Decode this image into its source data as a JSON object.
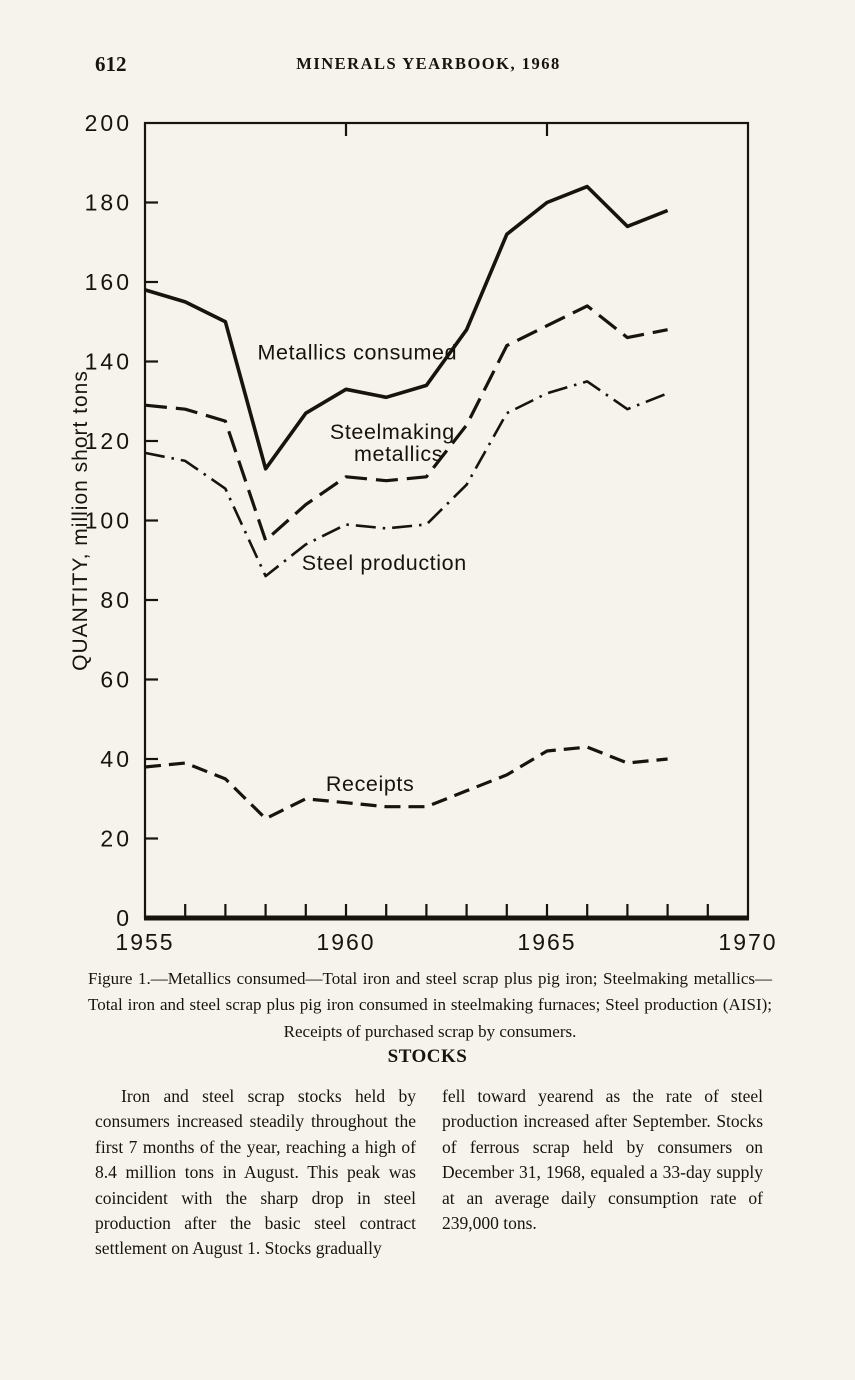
{
  "page": {
    "page_number": "612",
    "header_title": "MINERALS YEARBOOK, 1968"
  },
  "figure": {
    "caption": "Figure 1.—Metallics consumed—Total iron and steel scrap plus pig iron; Steelmaking metallics—Total iron and steel scrap plus pig iron consumed in steelmaking furnaces; Steel production (AISI); Receipts of purchased scrap by consumers."
  },
  "section": {
    "heading": "STOCKS",
    "col_left": "Iron and steel scrap stocks held by consumers increased steadily throughout the first 7 months of the year, reaching a high of 8.4 million tons in August. This peak was coincident with the sharp drop in steel production after the basic steel contract settlement on August 1. Stocks gradually",
    "col_right": "fell toward yearend as the rate of steel production increased after September. Stocks of ferrous scrap held by consumers on December 31, 1968, equaled a 33-day supply at an average daily consumption rate of 239,000 tons."
  },
  "chart_data": {
    "type": "line",
    "title": "",
    "xlabel": "",
    "ylabel": "QUANTITY, million short tons",
    "xlim": [
      1955,
      1970
    ],
    "ylim": [
      0,
      200
    ],
    "grid": false,
    "legend_position": "inline-labels",
    "ink": "#17130d",
    "y_ticks": [
      0,
      20,
      40,
      60,
      80,
      100,
      120,
      140,
      160,
      180,
      200
    ],
    "x_tick_labels": [
      1955,
      1960,
      1965,
      1970
    ],
    "top_ticks": [
      1960,
      1965
    ],
    "x": [
      1955,
      1956,
      1957,
      1958,
      1959,
      1960,
      1961,
      1962,
      1963,
      1964,
      1965,
      1966,
      1967,
      1968
    ],
    "series": [
      {
        "name": "Metallics consumed",
        "style": "solid",
        "values": [
          158,
          155,
          150,
          113,
          127,
          133,
          131,
          134,
          148,
          172,
          180,
          184,
          174,
          178
        ]
      },
      {
        "name": "Steelmaking metallics",
        "style": "long-dash",
        "values": [
          129,
          128,
          125,
          95,
          104,
          111,
          110,
          111,
          124,
          144,
          149,
          154,
          146,
          148
        ]
      },
      {
        "name": "Steel production",
        "style": "dash-dot",
        "values": [
          117,
          115,
          108,
          86,
          94,
          99,
          98,
          99,
          109,
          127,
          132,
          135,
          128,
          132
        ]
      },
      {
        "name": "Receipts",
        "style": "dash",
        "values": [
          38,
          39,
          35,
          25,
          30,
          29,
          28,
          28,
          32,
          36,
          42,
          43,
          39,
          40
        ]
      }
    ],
    "annotations": [
      {
        "text": "Metallics consumed",
        "x": 1957.8,
        "y": 140.5
      },
      {
        "text": "Steelmaking",
        "x": 1959.6,
        "y": 120.5
      },
      {
        "text": "metallics",
        "x": 1960.2,
        "y": 115.0
      },
      {
        "text": "Steel production",
        "x": 1958.9,
        "y": 87.5
      },
      {
        "text": "Receipts",
        "x": 1959.5,
        "y": 32.0
      }
    ]
  }
}
